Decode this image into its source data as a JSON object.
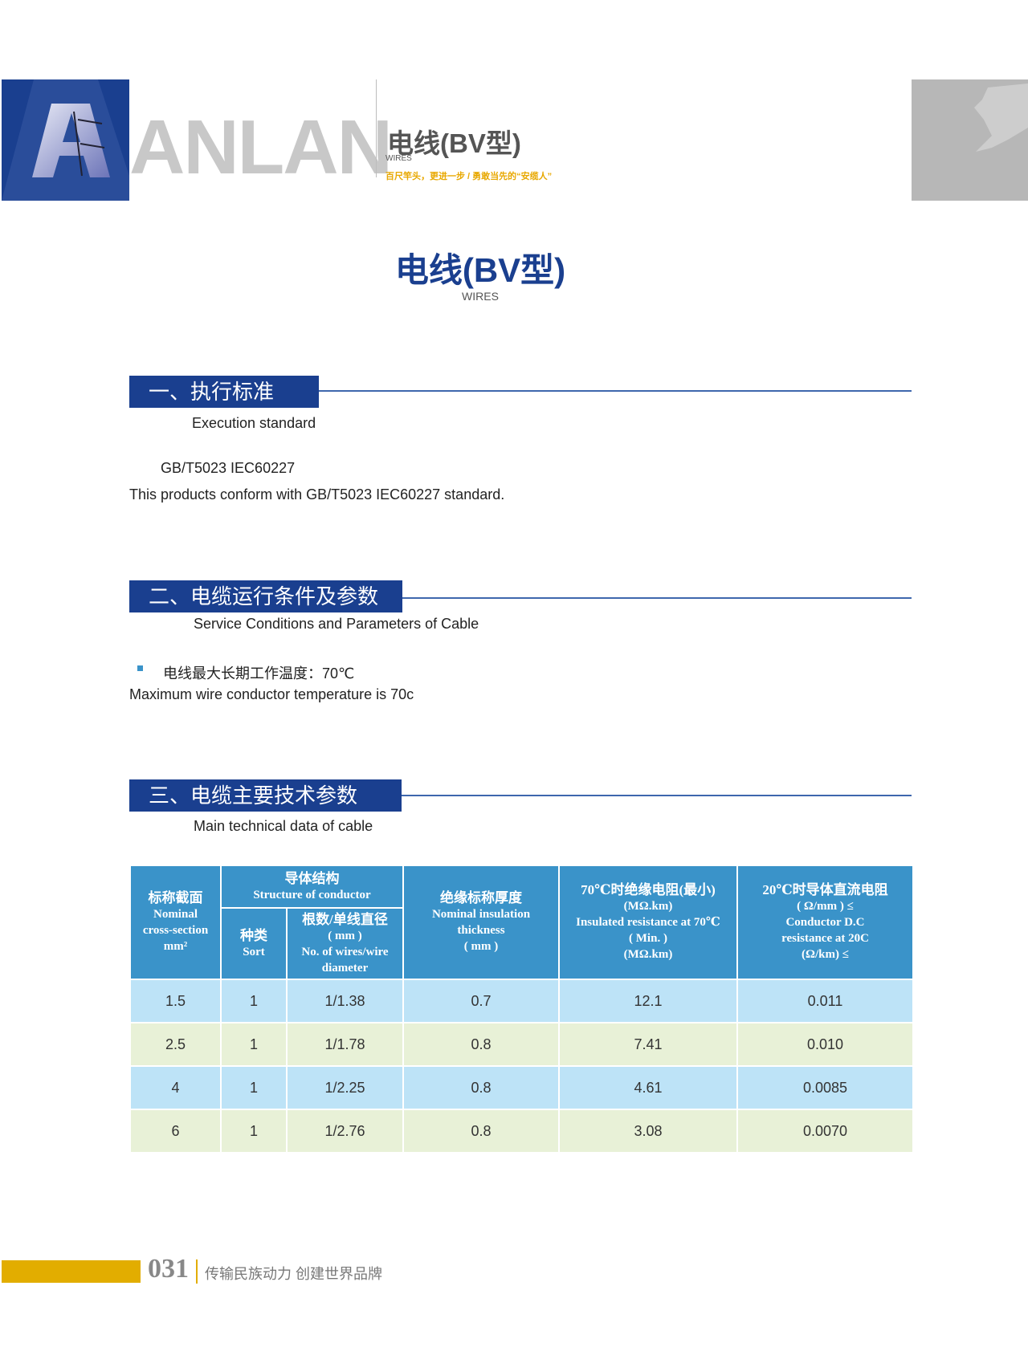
{
  "header": {
    "logo_text": "ANLAN",
    "title": "电线(BV型)",
    "subtitle": "WIRES",
    "slogan": "百尺竿头，更进一步 / 勇敢当先的“安缆人”"
  },
  "main": {
    "title": "电线(BV型)",
    "subtitle": "WIRES"
  },
  "sections": [
    {
      "title": "一、执行标准",
      "subtitle": "Execution standard",
      "lines": [
        "GB/T5023  IEC60227",
        "This products conform with GB/T5023  IEC60227 standard."
      ]
    },
    {
      "title": "二、电缆运行条件及参数",
      "subtitle": "Service Conditions and Parameters of Cable",
      "bullet": "电线最大长期工作温度：70℃",
      "lines": [
        "Maximum wire conductor temperature is 70c"
      ]
    },
    {
      "title": "三、电缆主要技术参数",
      "subtitle": "Main technical data of cable"
    }
  ],
  "table": {
    "headers": {
      "section": [
        "标称截面",
        "Nominal",
        "cross-section",
        "mm²"
      ],
      "structure": [
        "导体结构",
        "Structure of conductor"
      ],
      "sort": [
        "种类",
        "Sort"
      ],
      "wires": [
        "根数/单线直径",
        "( mm )",
        "No. of wires/wire",
        "diameter"
      ],
      "insulation": [
        "绝缘标称厚度",
        "Nominal insulation",
        "thickness",
        "( mm )"
      ],
      "ins_resistance": [
        "70℃时绝缘电阻(最小)",
        "(MΩ.km)",
        "Insulated resistance at 70℃",
        "( Min. )",
        "(MΩ.km)"
      ],
      "dc_resistance": [
        "20℃时导体直流电阻",
        "( Ω/mm ) ≤",
        "Conductor D.C",
        "resistance at 20C",
        "(Ω/km) ≤"
      ]
    },
    "rows": [
      [
        "1.5",
        "1",
        "1/1.38",
        "0.7",
        "12.1",
        "0.011"
      ],
      [
        "2.5",
        "1",
        "1/1.78",
        "0.8",
        "7.41",
        "0.010"
      ],
      [
        "4",
        "1",
        "1/2.25",
        "0.8",
        "4.61",
        "0.0085"
      ],
      [
        "6",
        "1",
        "1/2.76",
        "0.8",
        "3.08",
        "0.0070"
      ]
    ]
  },
  "footer": {
    "page_number": "031",
    "slogan": "传输民族动力  创建世界品牌"
  },
  "colors": {
    "brand_blue": "#1a3f8f",
    "table_header": "#3a93c9",
    "row_blue": "#bde3f7",
    "row_green": "#e8f1d7",
    "accent_yellow": "#e2ad00"
  }
}
